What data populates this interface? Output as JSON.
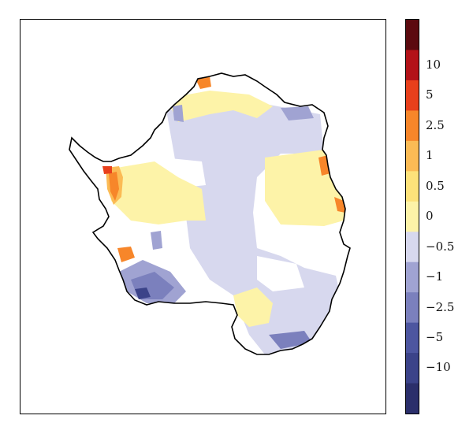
{
  "map": {
    "region": "Antarctica",
    "outline_color": "#000000"
  },
  "colorbar": {
    "levels": [
      {
        "from": "-inf",
        "to": -10,
        "color": "#2b2f6b"
      },
      {
        "from": -10,
        "to": -5,
        "color": "#3b4389"
      },
      {
        "from": -5,
        "to": -2.5,
        "color": "#4d56a0"
      },
      {
        "from": -2.5,
        "to": -1,
        "color": "#7b80bd"
      },
      {
        "from": -1,
        "to": -0.5,
        "color": "#a0a3d2"
      },
      {
        "from": -0.5,
        "to": 0,
        "color": "#d7d8ee"
      },
      {
        "from": 0,
        "to": 0.5,
        "color": "#fdf3a8"
      },
      {
        "from": 0.5,
        "to": 1,
        "color": "#fde27a"
      },
      {
        "from": 1,
        "to": 2.5,
        "color": "#fbbb55"
      },
      {
        "from": 2.5,
        "to": 5,
        "color": "#f7862a"
      },
      {
        "from": 5,
        "to": 10,
        "color": "#e8401c"
      },
      {
        "from": 10,
        "to": 20,
        "color": "#b31218"
      },
      {
        "from": 20,
        "to": "inf",
        "color": "#5c0a0f"
      }
    ],
    "tick_labels": [
      "10",
      "5",
      "2.5",
      "1",
      "0.5",
      "0",
      "−0.5",
      "−1",
      "−2.5",
      "−5",
      "−10"
    ]
  }
}
